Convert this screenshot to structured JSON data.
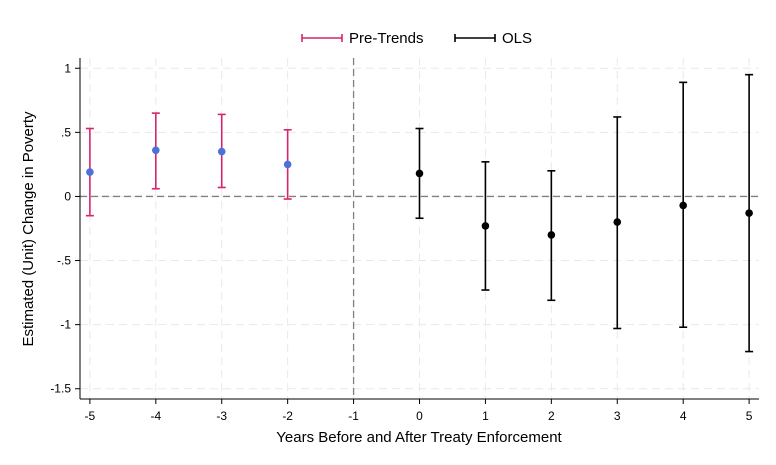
{
  "chart_data": {
    "type": "scatter",
    "subtype": "coefficient-plot-with-confidence-intervals",
    "xlabel": "Years Before and After Treaty Enforcement",
    "ylabel": "Estimated (Unit) Change in Poverty",
    "xlim": [
      -5.15,
      5.15
    ],
    "ylim": [
      -1.58,
      1.08
    ],
    "x_ticks": [
      -5,
      -4,
      -3,
      -2,
      -1,
      0,
      1,
      2,
      3,
      4,
      5
    ],
    "x_tick_labels": [
      "-5",
      "-4",
      "-3",
      "-2",
      "-1",
      "0",
      "1",
      "2",
      "3",
      "4",
      "5"
    ],
    "y_ticks": [
      1,
      0.5,
      0,
      -0.5,
      -1,
      -1.5
    ],
    "y_tick_labels": [
      "1",
      ".5",
      "0",
      "-.5",
      "-1",
      "-1.5"
    ],
    "grid": true,
    "reference_lines": {
      "horizontal_y": 0,
      "vertical_x": -1
    },
    "legend_position": "top",
    "series": [
      {
        "name": "Pre-Trends",
        "ci_color": "#d6246e",
        "point_color": "#4a72d9",
        "points": [
          {
            "x": -5,
            "y": 0.19,
            "lo": -0.15,
            "hi": 0.53
          },
          {
            "x": -4,
            "y": 0.36,
            "lo": 0.06,
            "hi": 0.65
          },
          {
            "x": -3,
            "y": 0.35,
            "lo": 0.07,
            "hi": 0.64
          },
          {
            "x": -2,
            "y": 0.25,
            "lo": -0.02,
            "hi": 0.52
          }
        ]
      },
      {
        "name": "OLS",
        "ci_color": "#000000",
        "point_color": "#000000",
        "points": [
          {
            "x": 0,
            "y": 0.18,
            "lo": -0.17,
            "hi": 0.53
          },
          {
            "x": 1,
            "y": -0.23,
            "lo": -0.73,
            "hi": 0.27
          },
          {
            "x": 2,
            "y": -0.3,
            "lo": -0.81,
            "hi": 0.2
          },
          {
            "x": 3,
            "y": -0.2,
            "lo": -1.03,
            "hi": 0.62
          },
          {
            "x": 4,
            "y": -0.07,
            "lo": -1.02,
            "hi": 0.89
          },
          {
            "x": 5,
            "y": -0.13,
            "lo": -1.21,
            "hi": 0.95
          }
        ]
      }
    ]
  }
}
